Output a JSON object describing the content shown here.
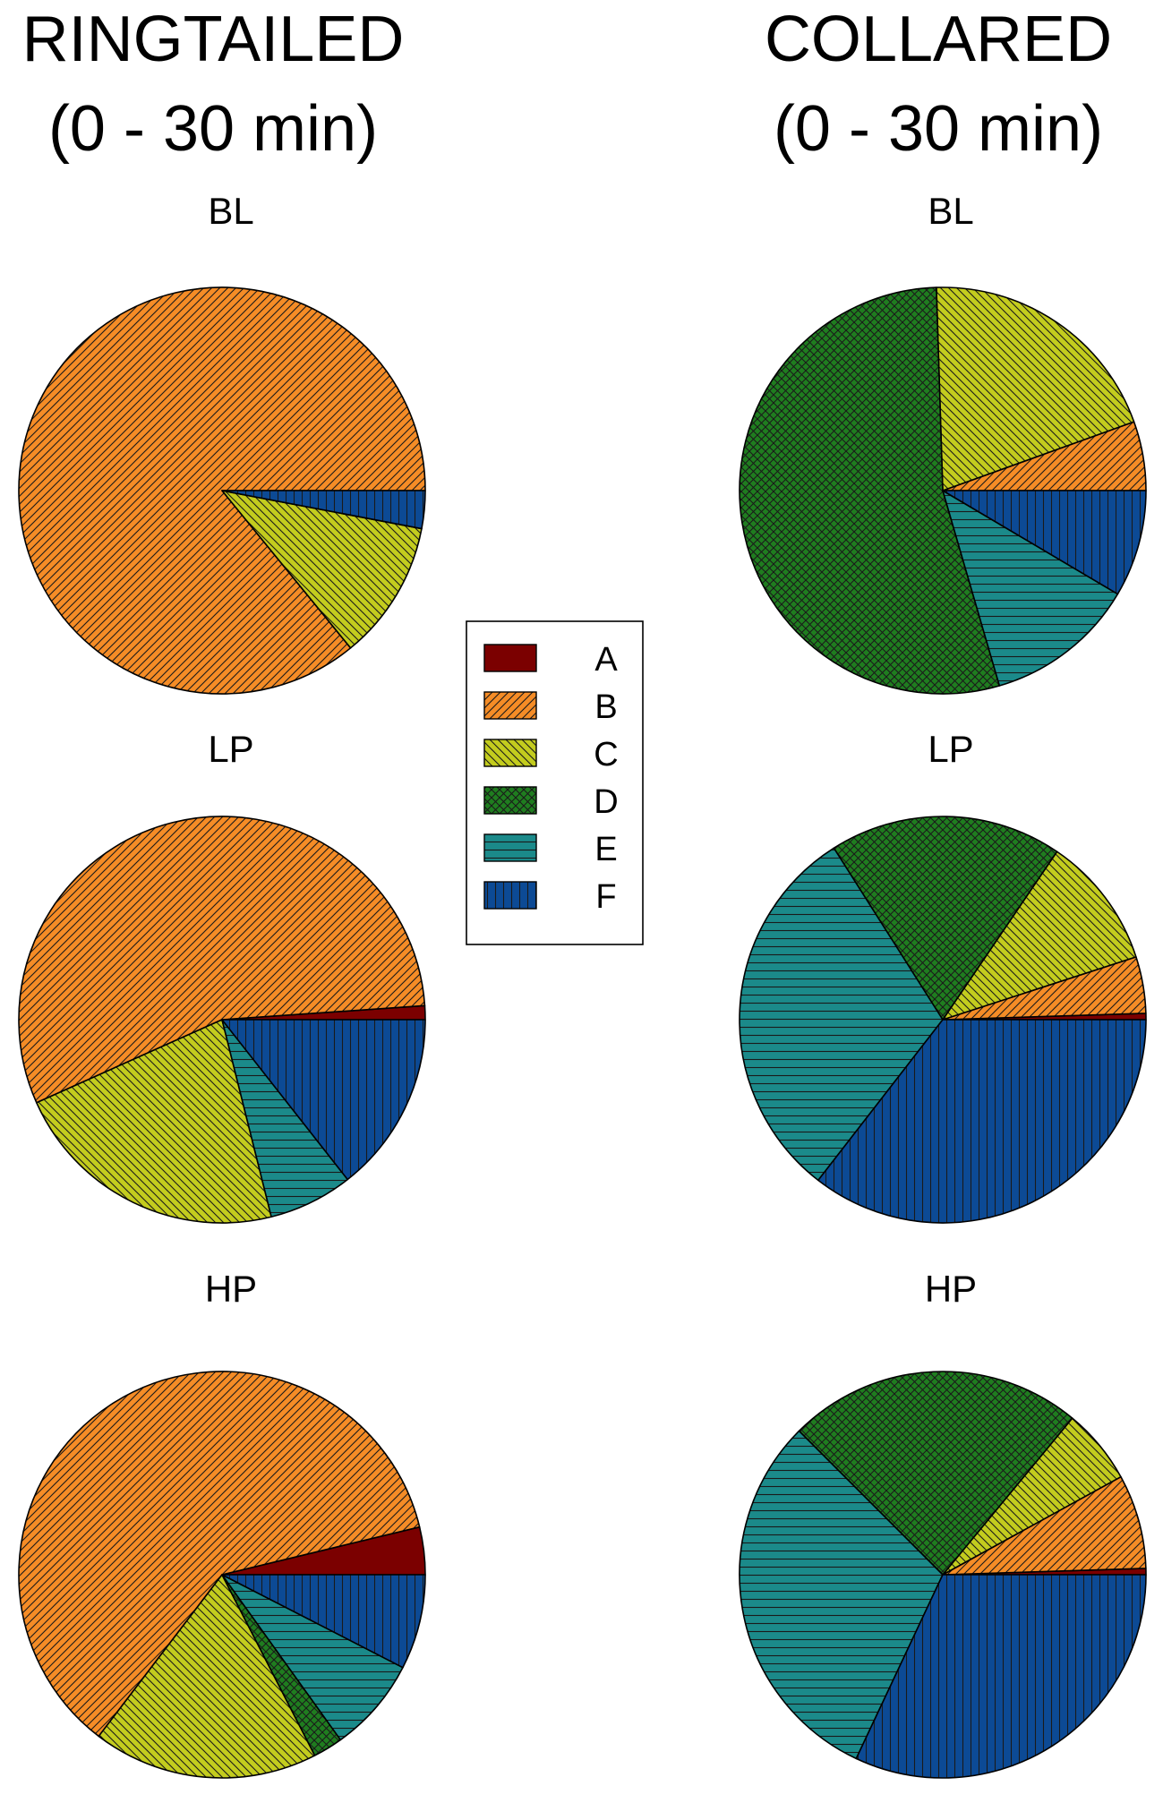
{
  "columns": [
    {
      "title_line1": "RINGTAILED",
      "title_line2": "(0 - 30 min)"
    },
    {
      "title_line1": "COLLARED",
      "title_line2": "(0 - 30 min)"
    }
  ],
  "legend": [
    {
      "label": "A",
      "color": "#7b0000",
      "pattern": "none"
    },
    {
      "label": "B",
      "color": "#f58c26",
      "pattern": "diag-right"
    },
    {
      "label": "C",
      "color": "#c3cc1e",
      "pattern": "diag-left"
    },
    {
      "label": "D",
      "color": "#1f7d1f",
      "pattern": "crosshatch"
    },
    {
      "label": "E",
      "color": "#1b8a8a",
      "pattern": "horizontal"
    },
    {
      "label": "F",
      "color": "#0c4a95",
      "pattern": "vertical"
    }
  ],
  "chart_data": [
    {
      "type": "pie",
      "group": "RINGTAILED",
      "title": "BL",
      "labels": [
        "A",
        "B",
        "C",
        "D",
        "E",
        "F"
      ],
      "values": [
        0.0,
        85.9,
        11.1,
        0.0,
        0.0,
        3.0
      ]
    },
    {
      "type": "pie",
      "group": "RINGTAILED",
      "title": "LP",
      "labels": [
        "A",
        "B",
        "C",
        "D",
        "E",
        "F"
      ],
      "values": [
        1.1,
        55.6,
        22.2,
        0.0,
        6.7,
        14.4
      ]
    },
    {
      "type": "pie",
      "group": "RINGTAILED",
      "title": "HP",
      "labels": [
        "A",
        "B",
        "C",
        "D",
        "E",
        "F"
      ],
      "values": [
        4.0,
        64.5,
        19.0,
        2.5,
        8.0,
        8.0
      ]
    },
    {
      "type": "pie",
      "group": "COLLARED",
      "title": "BL",
      "labels": [
        "A",
        "B",
        "C",
        "D",
        "E",
        "F"
      ],
      "values": [
        0.0,
        5.5,
        20.0,
        54.0,
        12.0,
        8.5
      ]
    },
    {
      "type": "pie",
      "group": "COLLARED",
      "title": "LP",
      "labels": [
        "A",
        "B",
        "C",
        "D",
        "E",
        "F"
      ],
      "values": [
        0.5,
        4.5,
        10.5,
        18.5,
        30.5,
        35.5
      ]
    },
    {
      "type": "pie",
      "group": "COLLARED",
      "title": "HP",
      "labels": [
        "A",
        "B",
        "C",
        "D",
        "E",
        "F"
      ],
      "values": [
        0.5,
        7.5,
        6.0,
        23.5,
        30.5,
        32.0
      ]
    }
  ]
}
